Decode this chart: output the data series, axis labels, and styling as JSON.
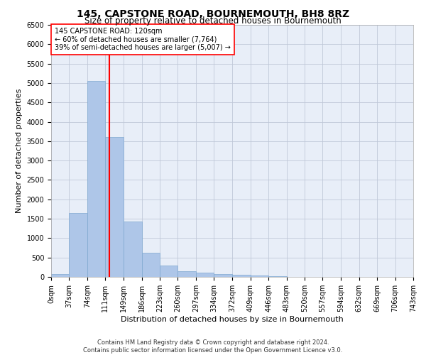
{
  "title": "145, CAPSTONE ROAD, BOURNEMOUTH, BH8 8RZ",
  "subtitle": "Size of property relative to detached houses in Bournemouth",
  "xlabel": "Distribution of detached houses by size in Bournemouth",
  "ylabel": "Number of detached properties",
  "footer_line1": "Contains HM Land Registry data © Crown copyright and database right 2024.",
  "footer_line2": "Contains public sector information licensed under the Open Government Licence v3.0.",
  "bar_values": [
    75,
    1650,
    5050,
    3600,
    1420,
    620,
    290,
    145,
    110,
    80,
    55,
    30,
    10,
    0,
    0,
    0,
    0,
    0,
    0,
    0
  ],
  "bin_edges": [
    0,
    37,
    74,
    111,
    149,
    186,
    223,
    260,
    297,
    334,
    372,
    409,
    446,
    483,
    520,
    557,
    594,
    632,
    669,
    706,
    743
  ],
  "tick_labels": [
    "0sqm",
    "37sqm",
    "74sqm",
    "111sqm",
    "149sqm",
    "186sqm",
    "223sqm",
    "260sqm",
    "297sqm",
    "334sqm",
    "372sqm",
    "409sqm",
    "446sqm",
    "483sqm",
    "520sqm",
    "557sqm",
    "594sqm",
    "632sqm",
    "669sqm",
    "706sqm",
    "743sqm"
  ],
  "bar_color": "#aec6e8",
  "bar_edgecolor": "#7fa8d0",
  "grid_color": "#c0c8d8",
  "vline_x": 120,
  "vline_color": "red",
  "annotation_line1": "145 CAPSTONE ROAD: 120sqm",
  "annotation_line2": "← 60% of detached houses are smaller (7,764)",
  "annotation_line3": "39% of semi-detached houses are larger (5,007) →",
  "ylim": [
    0,
    6500
  ],
  "yticks": [
    0,
    500,
    1000,
    1500,
    2000,
    2500,
    3000,
    3500,
    4000,
    4500,
    5000,
    5500,
    6000,
    6500
  ],
  "bg_color": "#e8eef8",
  "fig_bg_color": "#ffffff",
  "title_fontsize": 10,
  "subtitle_fontsize": 8.5,
  "xlabel_fontsize": 8,
  "ylabel_fontsize": 8,
  "tick_fontsize": 7,
  "annotation_fontsize": 7,
  "footer_fontsize": 6
}
